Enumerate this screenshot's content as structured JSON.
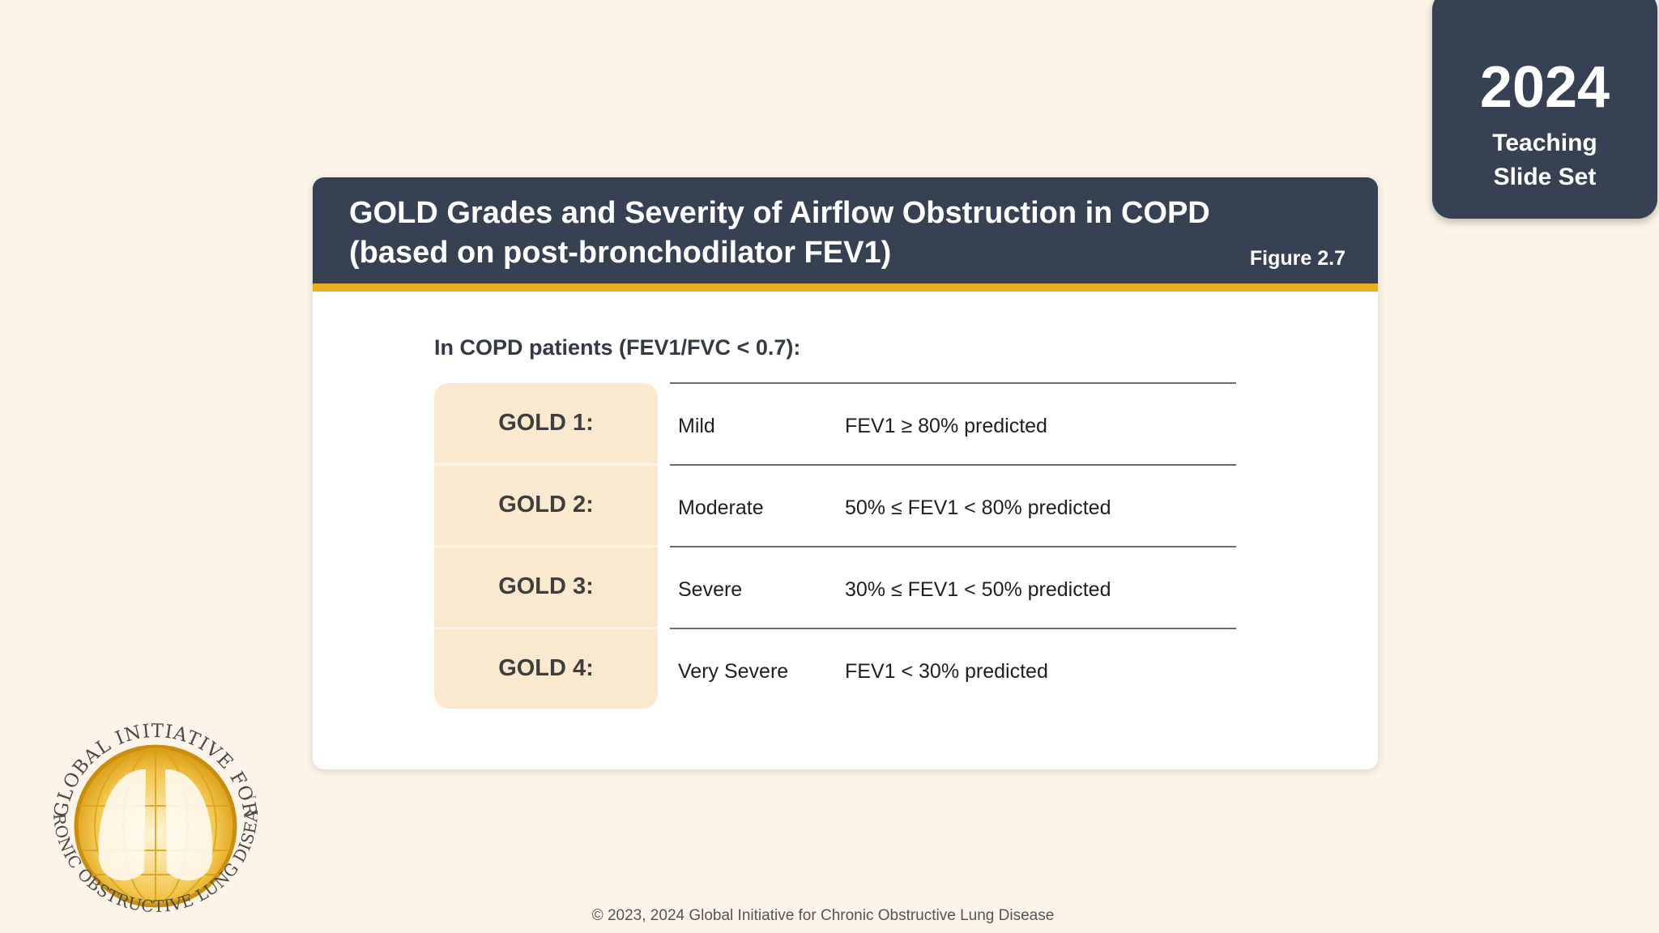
{
  "badge": {
    "year": "2024",
    "line1": "Teaching",
    "line2": "Slide Set"
  },
  "figure": {
    "title_line1": "GOLD Grades and Severity of Airflow Obstruction in COPD",
    "title_line2": "(based on post-bronchodilator FEV1)",
    "label": "Figure 2.7",
    "intro": "In COPD patients (FEV1/FVC < 0.7):",
    "rows": [
      {
        "grade": "GOLD 1:",
        "severity": "Mild",
        "criterion": "FEV1 ≥ 80% predicted"
      },
      {
        "grade": "GOLD 2:",
        "severity": "Moderate",
        "criterion": "50% ≤ FEV1 < 80% predicted"
      },
      {
        "grade": "GOLD 3:",
        "severity": "Severe",
        "criterion": "30% ≤ FEV1 < 50% predicted"
      },
      {
        "grade": "GOLD 4:",
        "severity": "Very Severe",
        "criterion": "FEV1 < 30% predicted"
      }
    ]
  },
  "logo": {
    "icon": "gold-globe-lungs-logo",
    "ring_top": "GLOBAL INITIATIVE FOR",
    "ring_bottom": "CHRONIC OBSTRUCTIVE LUNG DISEASE",
    "trademark": "™"
  },
  "footer": {
    "copyright": "© 2023, 2024 Global Initiative for Chronic Obstructive Lung Disease"
  },
  "colors": {
    "background": "#fcf4e8",
    "header": "#364254",
    "accent": "#e7ae1e",
    "grade_cell": "#fbe9cf"
  }
}
